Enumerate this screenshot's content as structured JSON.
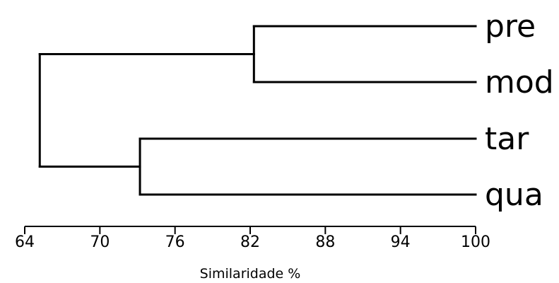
{
  "chart_data": {
    "type": "dendrogram",
    "leaves": [
      "pre",
      "mod",
      "tar",
      "qua"
    ],
    "merges": [
      {
        "members": [
          "pre",
          "mod"
        ],
        "similarity": 82.3
      },
      {
        "members": [
          "tar",
          "qua"
        ],
        "similarity": 73.2
      },
      {
        "members": [
          "pre",
          "mod",
          "tar",
          "qua"
        ],
        "similarity": 65.2
      }
    ],
    "x_axis": {
      "label": "Similaridade %",
      "range": [
        64,
        100
      ],
      "ticks": [
        64,
        70,
        76,
        82,
        88,
        94,
        100
      ]
    }
  }
}
